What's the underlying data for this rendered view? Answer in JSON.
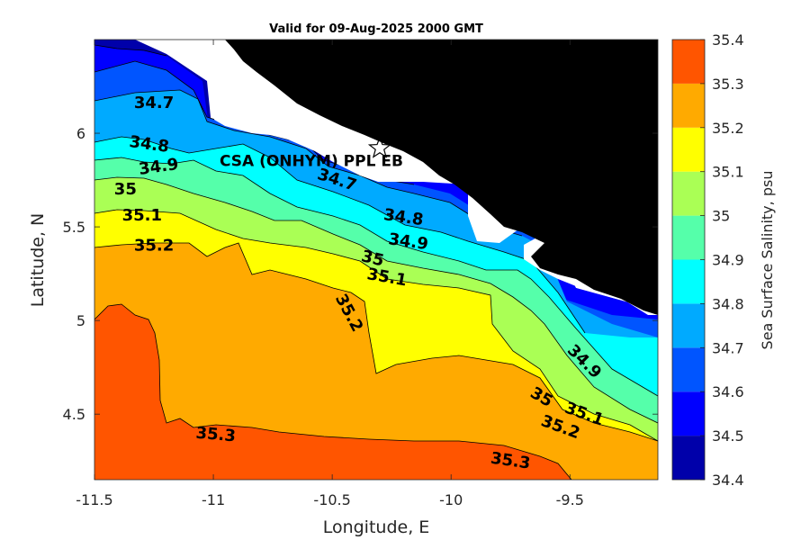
{
  "chart_data": {
    "type": "heatmap",
    "title": "Valid for 09-Aug-2025 2000 GMT",
    "xlabel": "Longitude, E",
    "ylabel": "Latitude, N",
    "xlim": [
      -11.5,
      -9.13
    ],
    "ylim": [
      4.15,
      6.5
    ],
    "xticks": [
      -11.5,
      -11,
      -10.5,
      -10,
      -9.5
    ],
    "xtick_labels": [
      "-11.5",
      "-11",
      "-10.5",
      "-10",
      "-9.5"
    ],
    "yticks": [
      4.5,
      5,
      5.5,
      6
    ],
    "ytick_labels": [
      "4.5",
      "5",
      "5.5",
      "6"
    ],
    "grid": false,
    "colorbar": {
      "label": "Sea Surface Salinity, psu",
      "levels": [
        34.4,
        34.5,
        34.6,
        34.7,
        34.8,
        34.9,
        35.0,
        35.1,
        35.2,
        35.3,
        35.4
      ],
      "tick_labels": [
        "34.4",
        "34.5",
        "34.6",
        "34.7",
        "34.8",
        "34.9",
        "35",
        "35.1",
        "35.2",
        "35.3",
        "35.4"
      ],
      "colors": [
        "#0000AA",
        "#0000FF",
        "#0055FF",
        "#00AAFF",
        "#00FFFF",
        "#55FFAA",
        "#AAFF55",
        "#FFFF00",
        "#FFAA00",
        "#FF5500"
      ]
    },
    "land_color": "#000000",
    "nodata_color": "#FFFFFF",
    "site": {
      "name": "CSA (ONHYM) PPL EB",
      "lon": -10.3,
      "lat": 5.92,
      "marker": "star-icon"
    },
    "contour_labels": [
      {
        "text": "34.7",
        "lon": -11.25,
        "lat": 6.16,
        "angle": 0
      },
      {
        "text": "34.7",
        "lon": -10.48,
        "lat": 5.75,
        "angle": 18
      },
      {
        "text": "34.8",
        "lon": -11.27,
        "lat": 5.94,
        "angle": 8
      },
      {
        "text": "34.8",
        "lon": -10.2,
        "lat": 5.55,
        "angle": 8
      },
      {
        "text": "34.9",
        "lon": -11.23,
        "lat": 5.82,
        "angle": -8
      },
      {
        "text": "34.9",
        "lon": -10.18,
        "lat": 5.42,
        "angle": 8
      },
      {
        "text": "35",
        "lon": -11.37,
        "lat": 5.7,
        "angle": 0
      },
      {
        "text": "35",
        "lon": -10.33,
        "lat": 5.33,
        "angle": 14
      },
      {
        "text": "35.1",
        "lon": -11.3,
        "lat": 5.56,
        "angle": 0
      },
      {
        "text": "35.1",
        "lon": -10.27,
        "lat": 5.23,
        "angle": 10
      },
      {
        "text": "35.2",
        "lon": -11.25,
        "lat": 5.4,
        "angle": 0
      },
      {
        "text": "35.2",
        "lon": -10.43,
        "lat": 5.04,
        "angle": 62
      },
      {
        "text": "35.2",
        "lon": -9.54,
        "lat": 4.43,
        "angle": 20
      },
      {
        "text": "34.9",
        "lon": -9.44,
        "lat": 4.78,
        "angle": 45
      },
      {
        "text": "35",
        "lon": -9.62,
        "lat": 4.59,
        "angle": 30
      },
      {
        "text": "35.1",
        "lon": -9.44,
        "lat": 4.5,
        "angle": 20
      },
      {
        "text": "35.3",
        "lon": -10.99,
        "lat": 4.39,
        "angle": 5
      },
      {
        "text": "35.3",
        "lon": -9.75,
        "lat": 4.25,
        "angle": 8
      }
    ]
  }
}
